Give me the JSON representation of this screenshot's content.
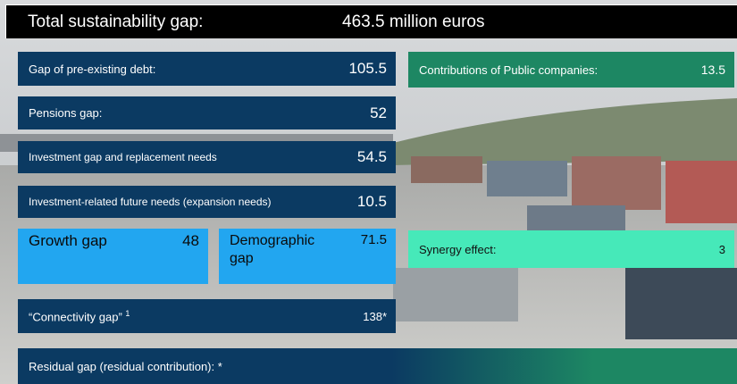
{
  "header": {
    "label": "Total sustainability gap:",
    "value": "463.5 million euros"
  },
  "boxes": [
    {
      "label": "Gap of pre-existing debt:",
      "value": 105.5
    },
    {
      "label": "Contributions of Public companies:",
      "value": 13.5
    },
    {
      "label": "Pensions gap:",
      "value": 52
    },
    {
      "label": "Investment gap and replacement needs",
      "value": 54.5
    },
    {
      "label": "Investment-related future needs (expansion needs)",
      "value": 10.5
    },
    {
      "label": "Growth gap",
      "value": 48
    },
    {
      "label": "Demographic gap",
      "value": 71.5
    },
    {
      "label": "Synergy effect:",
      "value": 3
    },
    {
      "label": "“Connectivity gap”",
      "note": "1",
      "value": "138*"
    },
    {
      "label": "Residual gap (residual contribution): *"
    }
  ]
}
